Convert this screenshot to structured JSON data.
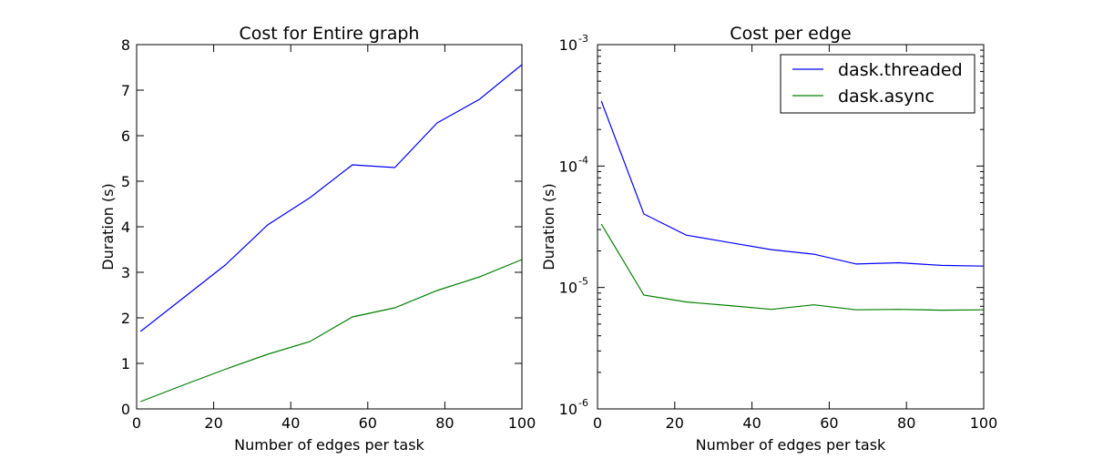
{
  "chart_data": [
    {
      "type": "line",
      "title": "Cost for Entire graph",
      "xlabel": "Number of edges per task",
      "ylabel": "Duration (s)",
      "xlim": [
        0,
        100
      ],
      "ylim": [
        0,
        8
      ],
      "yscale": "linear",
      "xticks": [
        "0",
        "20",
        "40",
        "60",
        "80",
        "100"
      ],
      "yticks": [
        "0",
        "1",
        "2",
        "3",
        "4",
        "5",
        "6",
        "7",
        "8"
      ],
      "x": [
        1,
        12,
        23,
        34,
        45,
        56,
        67,
        78,
        89,
        100
      ],
      "series": [
        {
          "name": "dask.threaded",
          "color": "#0000ff",
          "values": [
            1.7,
            2.43,
            3.16,
            4.04,
            4.64,
            5.36,
            5.3,
            6.28,
            6.8,
            7.56
          ]
        },
        {
          "name": "dask.async",
          "color": "#008000",
          "values": [
            0.16,
            0.52,
            0.87,
            1.2,
            1.48,
            2.02,
            2.22,
            2.6,
            2.9,
            3.28
          ]
        }
      ]
    },
    {
      "type": "line",
      "title": "Cost per edge",
      "xlabel": "Number of edges per task",
      "ylabel": "Duration (s)",
      "xlim": [
        0,
        100
      ],
      "ylim": [
        1e-06,
        0.001
      ],
      "yscale": "log",
      "xticks": [
        "0",
        "20",
        "40",
        "60",
        "80",
        "100"
      ],
      "yticks": [
        {
          "base": "10",
          "exp": "-6"
        },
        {
          "base": "10",
          "exp": "-5"
        },
        {
          "base": "10",
          "exp": "-4"
        },
        {
          "base": "10",
          "exp": "-3"
        }
      ],
      "legend": {
        "position": "upper-right",
        "entries": [
          "dask.threaded",
          "dask.async"
        ]
      },
      "x": [
        1,
        12,
        23,
        34,
        45,
        56,
        67,
        78,
        89,
        100
      ],
      "series": [
        {
          "name": "dask.threaded",
          "color": "#0000ff",
          "values": [
            0.000343,
            4.03e-05,
            2.7e-05,
            2.35e-05,
            2.05e-05,
            1.88e-05,
            1.56e-05,
            1.6e-05,
            1.52e-05,
            1.5e-05
          ]
        },
        {
          "name": "dask.async",
          "color": "#008000",
          "values": [
            3.33e-05,
            8.66e-06,
            7.6e-06,
            7.1e-06,
            6.6e-06,
            7.2e-06,
            6.55e-06,
            6.6e-06,
            6.5e-06,
            6.55e-06
          ]
        }
      ]
    }
  ]
}
